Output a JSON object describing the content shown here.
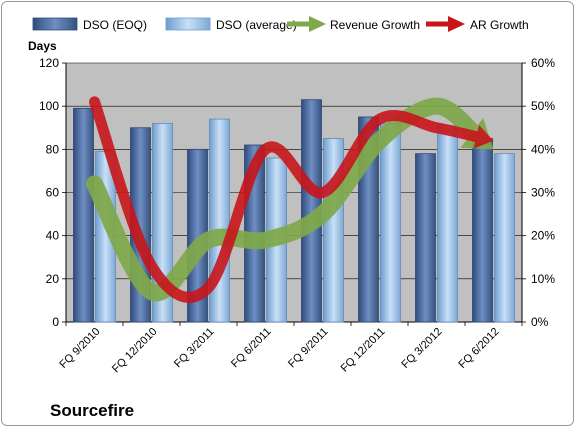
{
  "chart_data": {
    "type": "bar",
    "title": "Sourcefire",
    "ylabel": "Days",
    "ylim": [
      0,
      120
    ],
    "y2lim": [
      0,
      60
    ],
    "y_ticks": [
      "0",
      "20",
      "40",
      "60",
      "80",
      "100",
      "120"
    ],
    "y2_ticks": [
      "0%",
      "10%",
      "20%",
      "30%",
      "40%",
      "50%",
      "60%"
    ],
    "categories": [
      "FQ 9/2010",
      "FQ 12/2010",
      "FQ 3/2011",
      "FQ 6/2011",
      "FQ 9/2011",
      "FQ 12/2011",
      "FQ 3/2012",
      "FQ 6/2012"
    ],
    "series": [
      {
        "name": "DSO (EOQ)",
        "kind": "bar",
        "axis": "left",
        "values": [
          99,
          90,
          80,
          82,
          103,
          95,
          78,
          85
        ]
      },
      {
        "name": "DSO (average)",
        "kind": "bar",
        "axis": "left",
        "values": [
          79,
          92,
          94,
          76,
          85,
          92,
          91,
          78
        ]
      },
      {
        "name": "Revenue Growth",
        "kind": "arrow-line",
        "axis": "right",
        "values": [
          32,
          7,
          19,
          19,
          25,
          42,
          50,
          40
        ]
      },
      {
        "name": "AR Growth",
        "kind": "arrow-line",
        "axis": "right",
        "values": [
          51,
          13,
          8,
          40,
          30,
          47,
          45,
          42
        ]
      }
    ],
    "colors": {
      "bar_eoq": "#4f6fa1",
      "bar_avg": "#9fc3e8",
      "revenue_growth": "#7fa84a",
      "ar_growth": "#c8151b",
      "plot_background": "#c0c0c0"
    },
    "grid": true,
    "legend_position": "top"
  }
}
